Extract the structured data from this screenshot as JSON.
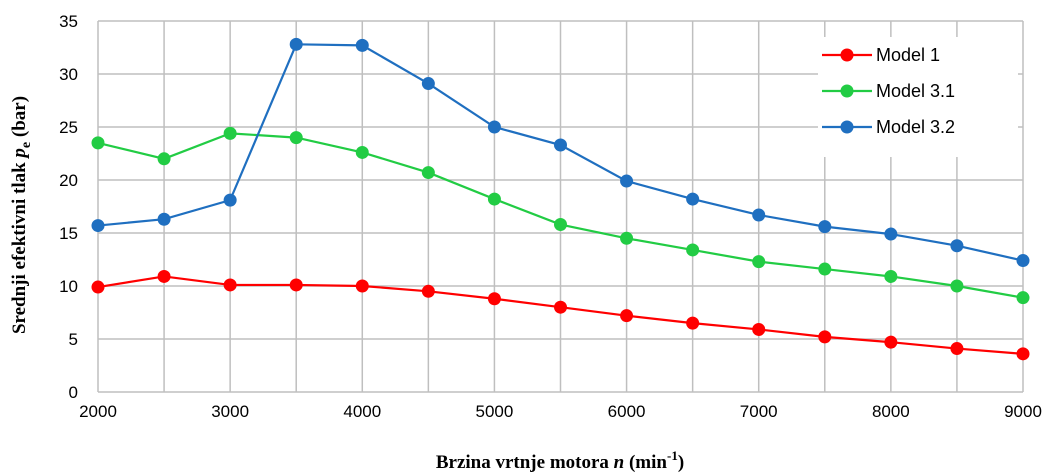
{
  "chart_data": {
    "type": "line",
    "title": "",
    "xlabel": {
      "main": "Brzina vrtnje motora ",
      "var": "n",
      "unit_pre": " (min",
      "unit_sup": "-1",
      "unit_post": ")"
    },
    "ylabel": {
      "main": "Srednji efektivni tlak ",
      "var": "p",
      "sub": "e",
      "unit": " (bar)"
    },
    "x": [
      2000,
      2500,
      3000,
      3500,
      4000,
      4500,
      5000,
      5500,
      6000,
      6500,
      7000,
      7500,
      8000,
      8500,
      9000
    ],
    "xlim": [
      2000,
      9000
    ],
    "ylim": [
      0,
      35
    ],
    "x_ticks": [
      2000,
      3000,
      4000,
      5000,
      6000,
      7000,
      8000,
      9000
    ],
    "y_ticks": [
      0,
      5,
      10,
      15,
      20,
      25,
      30,
      35
    ],
    "grid": true,
    "legend_position": "top-right",
    "series": [
      {
        "name": "Model 1",
        "color": "#ff0000",
        "values": [
          9.9,
          10.9,
          10.1,
          10.1,
          10.0,
          9.5,
          8.8,
          8.0,
          7.2,
          6.5,
          5.9,
          5.2,
          4.7,
          4.1,
          3.6
        ]
      },
      {
        "name": "Model 3.1",
        "color": "#22cc44",
        "values": [
          23.5,
          22.0,
          24.4,
          24.0,
          22.6,
          20.7,
          18.2,
          15.8,
          14.5,
          13.4,
          12.3,
          11.6,
          10.9,
          10.0,
          8.9
        ]
      },
      {
        "name": "Model 3.2",
        "color": "#1f6fc0",
        "values": [
          15.7,
          16.3,
          18.1,
          32.8,
          32.7,
          29.1,
          25.0,
          23.3,
          19.9,
          18.2,
          16.7,
          15.6,
          14.9,
          13.8,
          12.4
        ]
      }
    ]
  }
}
